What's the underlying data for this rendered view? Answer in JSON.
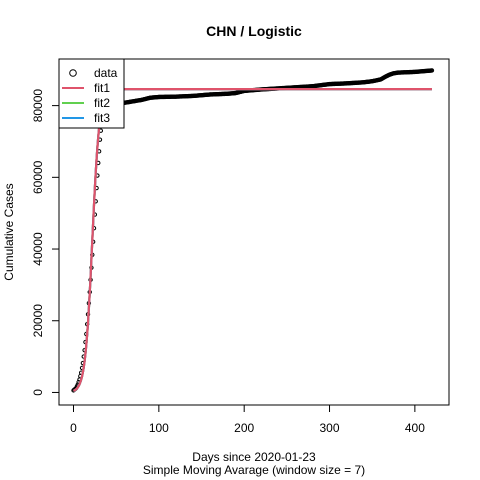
{
  "chart_data": {
    "type": "line",
    "title": "CHN / Logistic",
    "xlabel": "Days since 2020-01-23",
    "xlabel2": "Simple Moving Avarage (window size = 7)",
    "ylabel": "Cumulative Cases",
    "xlim": [
      -17,
      440
    ],
    "ylim": [
      -3500,
      93000
    ],
    "xticks": [
      0,
      100,
      200,
      300,
      400
    ],
    "yticks": [
      0,
      20000,
      40000,
      60000,
      80000
    ],
    "grid": false,
    "legend_position": "top-left",
    "legend": [
      {
        "label": "data",
        "kind": "point",
        "color": "#000000"
      },
      {
        "label": "fit1",
        "kind": "line",
        "color": "#df536b"
      },
      {
        "label": "fit2",
        "kind": "line",
        "color": "#61d04f"
      },
      {
        "label": "fit3",
        "kind": "line",
        "color": "#2297e6"
      }
    ],
    "data_anchors": {
      "x": [
        0,
        3,
        5,
        7,
        9,
        11,
        13,
        15,
        17,
        19,
        21,
        23,
        25,
        27,
        29,
        31,
        33,
        35,
        40,
        50,
        60,
        70,
        80,
        90,
        100,
        120,
        140,
        160,
        170,
        180,
        190,
        200,
        220,
        240,
        260,
        280,
        290,
        300,
        320,
        340,
        350,
        360,
        365,
        370,
        375,
        380,
        390,
        400,
        410,
        420
      ],
      "y": [
        580,
        1200,
        2200,
        3600,
        5500,
        8200,
        11800,
        16300,
        21800,
        28000,
        34800,
        42000,
        49600,
        57000,
        64000,
        70500,
        75500,
        78500,
        79700,
        80300,
        80800,
        81200,
        81600,
        82200,
        82400,
        82500,
        82700,
        83100,
        83200,
        83300,
        83500,
        84100,
        84500,
        84800,
        85100,
        85400,
        85700,
        86000,
        86200,
        86500,
        86800,
        87300,
        88000,
        88600,
        89000,
        89200,
        89300,
        89400,
        89600,
        89800
      ]
    },
    "series": [
      {
        "name": "fit1",
        "model": "logistic",
        "K": 84600,
        "r": 0.24,
        "t0": 22,
        "color": "#df536b"
      },
      {
        "name": "fit2",
        "model": "logistic",
        "K": 84600,
        "r": 0.24,
        "t0": 22,
        "color": "#61d04f"
      },
      {
        "name": "fit3",
        "model": "logistic",
        "K": 84600,
        "r": 0.24,
        "t0": 22,
        "color": "#2297e6"
      }
    ]
  }
}
